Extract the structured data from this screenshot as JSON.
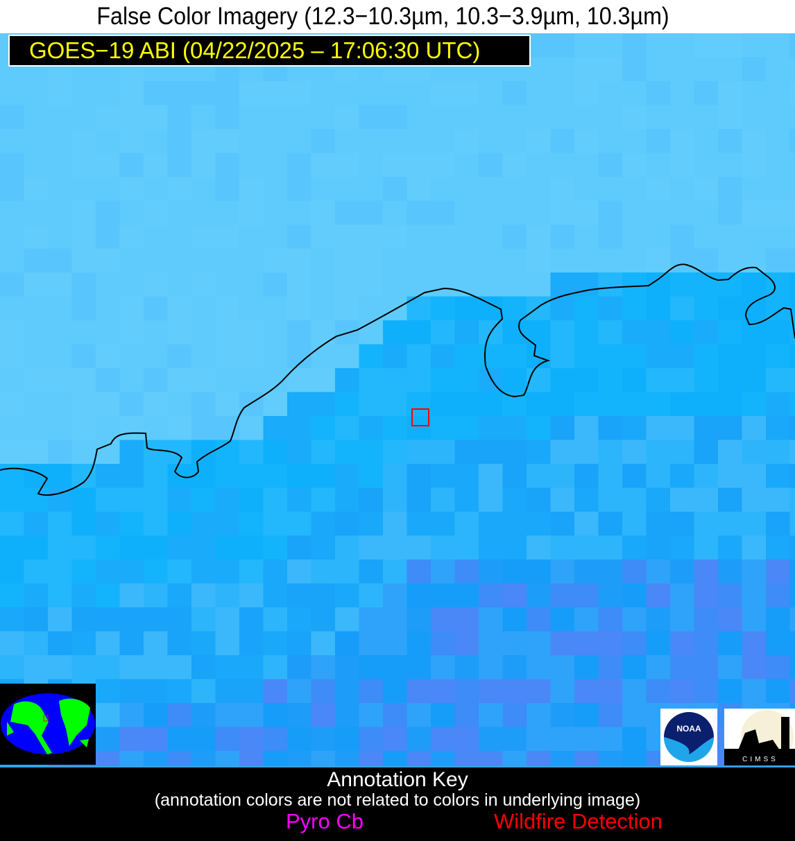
{
  "header": {
    "title": "False Color Imagery (12.3−10.3µm, 10.3−3.9µm, 10.3µm)"
  },
  "map": {
    "satellite_label": "GOES−19 ABI (04/22/2025 – 17:06:30 UTC)",
    "colors": {
      "land": "#5ecbfc",
      "water": "#13b4fb",
      "deep": "#3d8cf8",
      "coastline": "#000000",
      "fire_box": "#ff0000"
    },
    "inset": "globe-locator-icon",
    "logos": {
      "noaa": "NOAA",
      "cimss": "CIMSS"
    }
  },
  "footer": {
    "key_title": "Annotation Key",
    "key_subtitle": "(annotation colors are not related to colors in underlying image)",
    "pyro_cb": "Pyro Cb",
    "wildfire": "Wildfire Detection",
    "pyro_color": "#ff00ff",
    "wildfire_color": "#ff0000"
  }
}
